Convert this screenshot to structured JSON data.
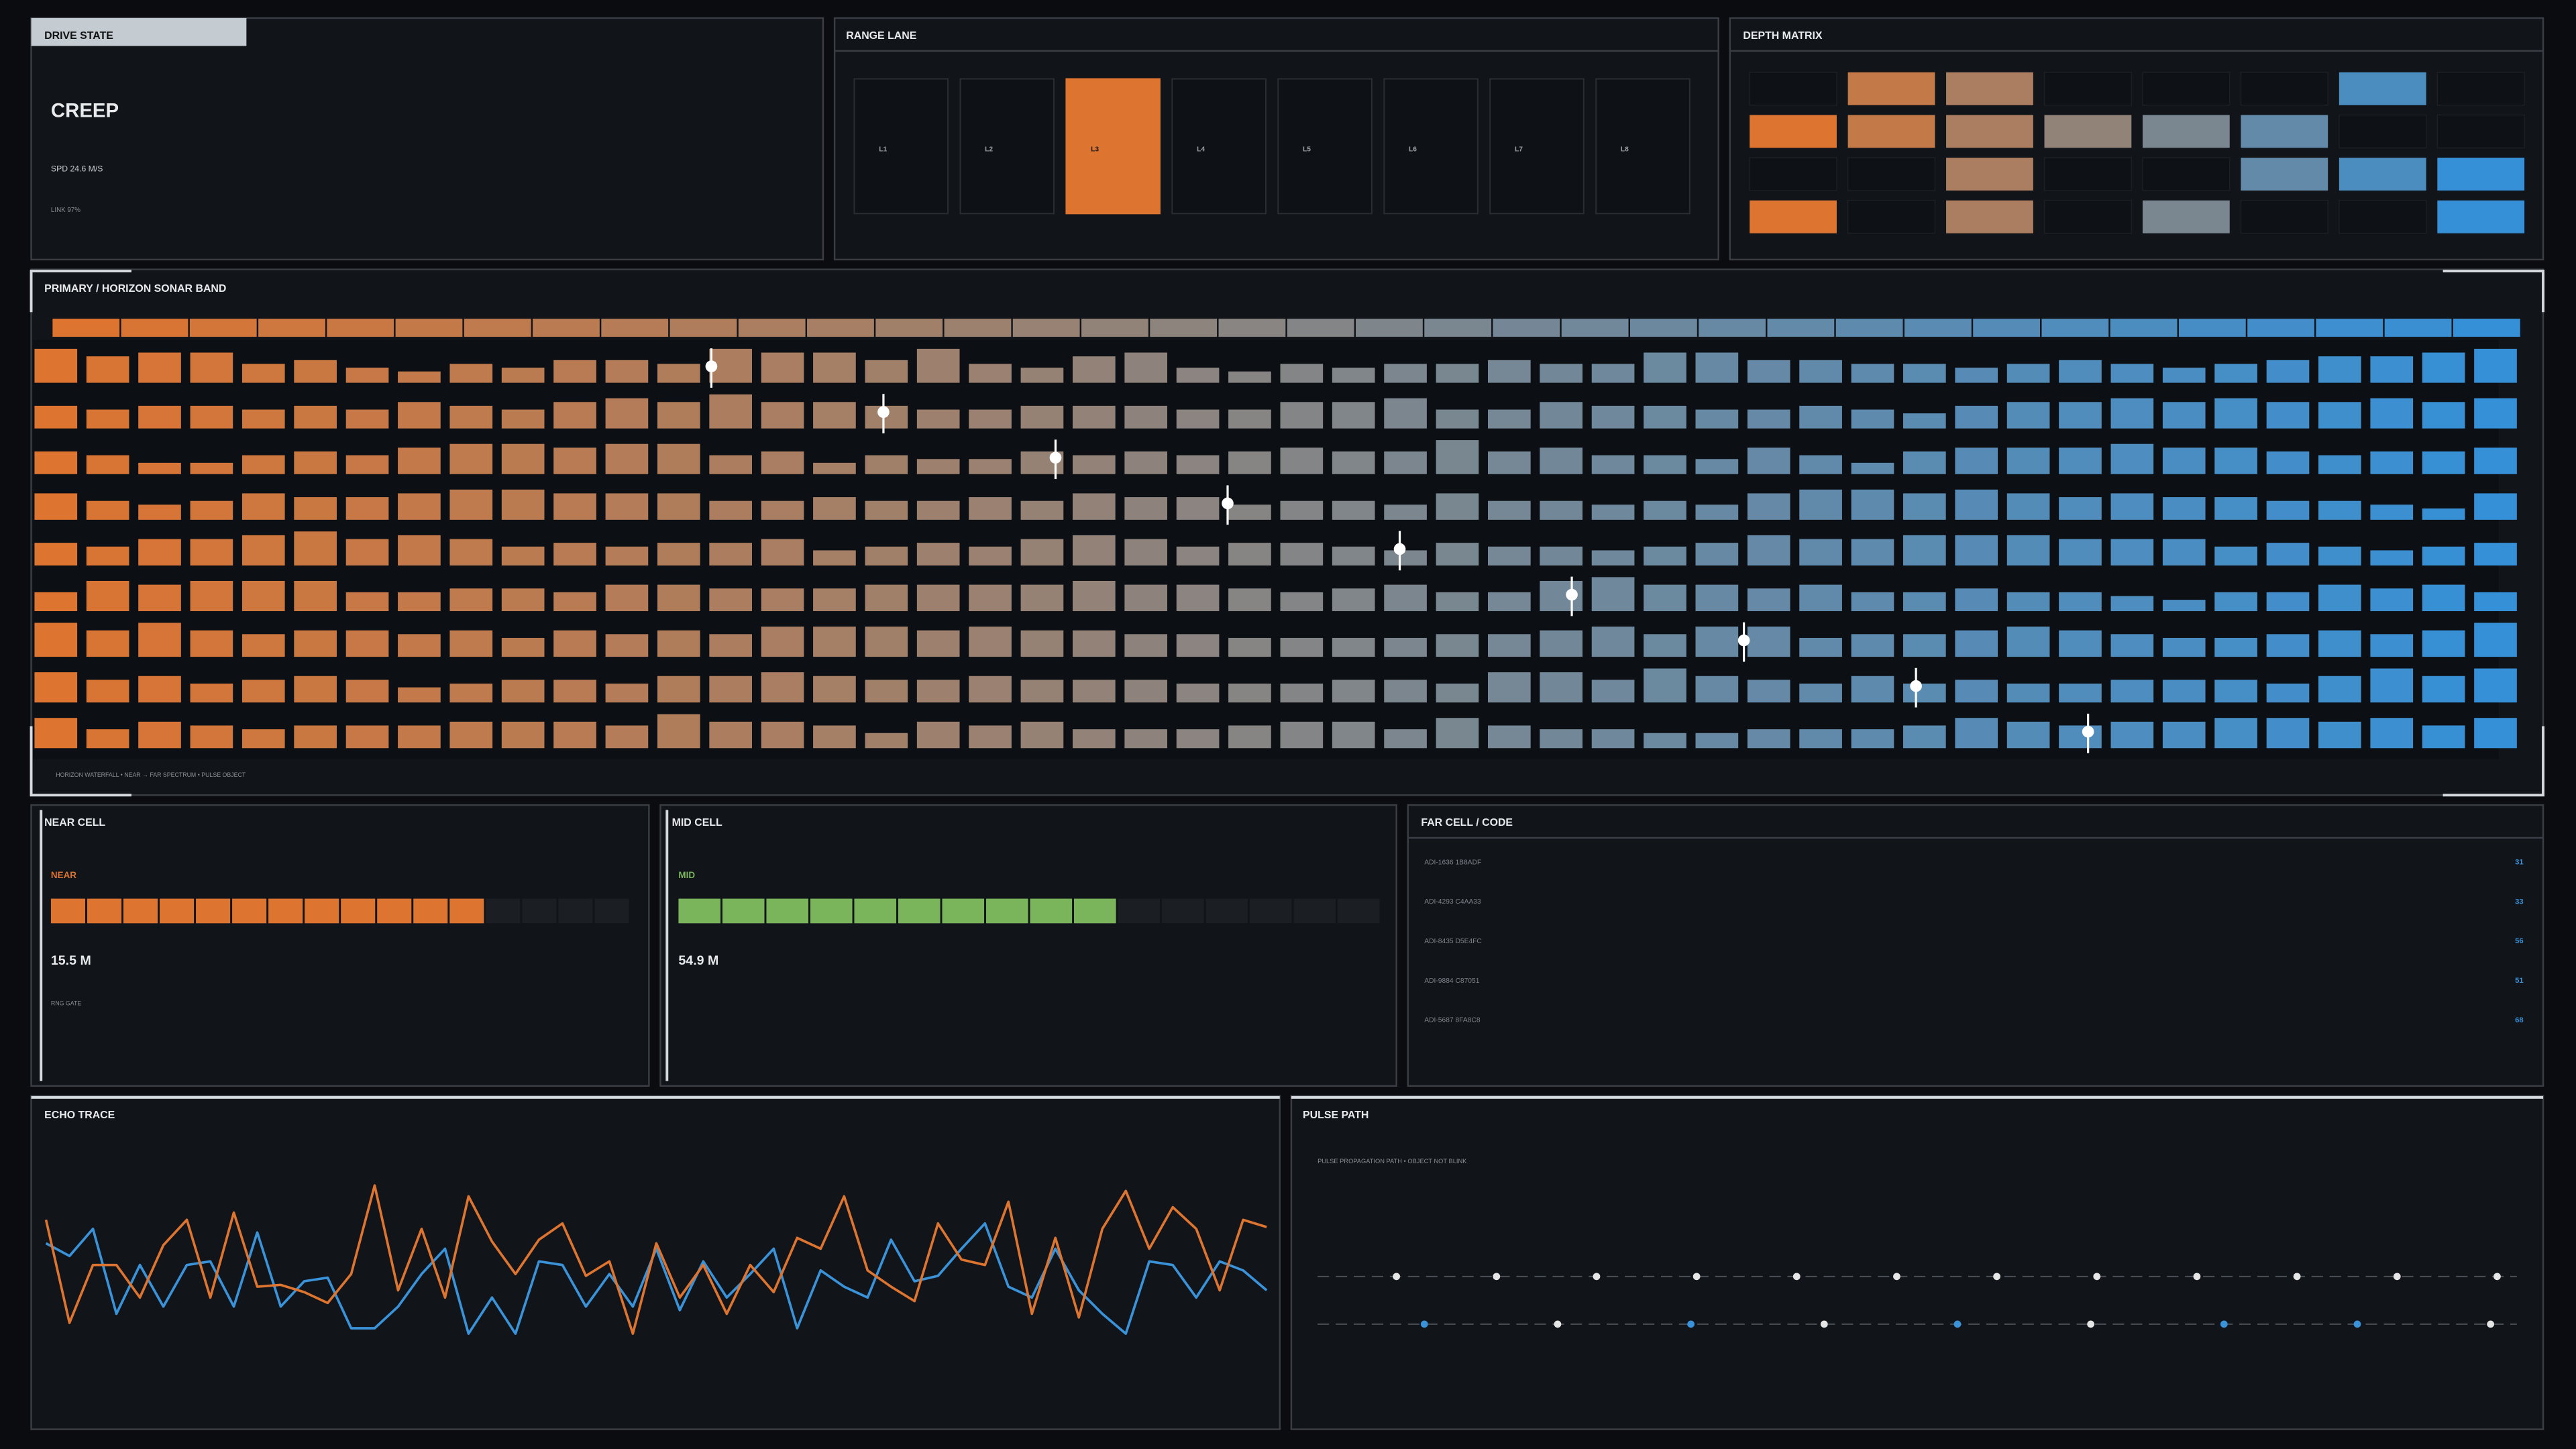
{
  "drive_state": {
    "title": "DRIVE STATE",
    "mode": "CREEP",
    "speed": "SPD 24.6 M/S",
    "link": "LINK 97%"
  },
  "range_lane": {
    "title": "RANGE LANE",
    "lanes": [
      "L1",
      "L2",
      "L3",
      "L4",
      "L5",
      "L6",
      "L7",
      "L8"
    ],
    "active": 2,
    "active_color": "#dd7430"
  },
  "depth_matrix": {
    "title": "DEPTH MATRIX",
    "cells": [
      [
        0,
        1,
        1,
        0,
        0,
        0,
        1,
        0
      ],
      [
        1,
        1,
        1,
        1,
        1,
        1,
        0,
        0
      ],
      [
        0,
        0,
        1,
        0,
        0,
        1,
        1,
        1
      ],
      [
        1,
        0,
        1,
        0,
        1,
        0,
        0,
        1
      ]
    ]
  },
  "sonar": {
    "title": "PRIMARY / HORIZON SONAR BAND",
    "footer": "HORIZON WATERFALL • NEAR → FAR SPECTRUM • PULSE OBJECT",
    "gradient": [
      "#dd7430",
      "#858585",
      "#3590d8"
    ],
    "rows": [
      [
        9,
        7,
        8,
        8,
        5,
        6,
        4,
        3,
        5,
        4,
        6,
        6,
        5,
        9,
        8,
        8,
        6,
        9,
        5,
        4,
        7,
        8,
        4,
        3,
        5,
        4,
        5,
        5,
        6,
        5,
        5,
        8,
        8,
        6,
        6,
        5,
        5,
        4,
        5,
        6,
        5,
        4,
        5,
        6,
        7,
        7,
        8,
        9
      ],
      [
        6,
        5,
        6,
        6,
        5,
        6,
        5,
        7,
        6,
        5,
        7,
        8,
        7,
        9,
        7,
        7,
        6,
        5,
        5,
        6,
        6,
        6,
        5,
        5,
        7,
        7,
        8,
        5,
        5,
        7,
        6,
        6,
        5,
        5,
        6,
        5,
        4,
        6,
        7,
        7,
        8,
        7,
        8,
        7,
        7,
        8,
        7,
        8
      ],
      [
        6,
        5,
        3,
        3,
        5,
        6,
        5,
        7,
        8,
        8,
        7,
        8,
        8,
        5,
        6,
        3,
        5,
        4,
        4,
        6,
        5,
        6,
        5,
        6,
        7,
        6,
        6,
        9,
        6,
        7,
        5,
        5,
        4,
        7,
        5,
        3,
        6,
        7,
        7,
        7,
        8,
        7,
        7,
        6,
        5,
        6,
        6,
        7
      ],
      [
        7,
        5,
        4,
        5,
        7,
        6,
        6,
        7,
        8,
        8,
        7,
        7,
        7,
        5,
        5,
        6,
        5,
        5,
        6,
        5,
        7,
        6,
        6,
        4,
        5,
        5,
        4,
        7,
        5,
        5,
        4,
        5,
        4,
        7,
        8,
        8,
        7,
        8,
        7,
        6,
        7,
        6,
        6,
        5,
        5,
        4,
        3,
        7
      ],
      [
        6,
        5,
        7,
        7,
        8,
        9,
        7,
        8,
        7,
        5,
        6,
        5,
        6,
        6,
        7,
        4,
        5,
        6,
        5,
        7,
        8,
        7,
        5,
        6,
        6,
        5,
        4,
        6,
        5,
        5,
        4,
        5,
        6,
        8,
        7,
        7,
        8,
        8,
        8,
        7,
        7,
        7,
        5,
        6,
        5,
        4,
        5,
        6
      ],
      [
        5,
        8,
        7,
        8,
        8,
        8,
        5,
        5,
        6,
        6,
        5,
        7,
        7,
        6,
        6,
        6,
        7,
        7,
        7,
        7,
        8,
        7,
        7,
        6,
        5,
        6,
        7,
        5,
        5,
        8,
        9,
        7,
        7,
        6,
        7,
        5,
        5,
        6,
        5,
        5,
        4,
        3,
        5,
        5,
        7,
        6,
        7,
        5
      ],
      [
        9,
        7,
        9,
        7,
        6,
        7,
        7,
        6,
        7,
        5,
        7,
        6,
        7,
        6,
        8,
        8,
        8,
        7,
        8,
        7,
        7,
        6,
        6,
        5,
        5,
        5,
        5,
        6,
        6,
        7,
        8,
        6,
        8,
        8,
        5,
        6,
        6,
        7,
        8,
        7,
        6,
        5,
        5,
        6,
        7,
        6,
        7,
        9
      ],
      [
        8,
        6,
        7,
        5,
        6,
        7,
        6,
        4,
        5,
        6,
        6,
        5,
        7,
        7,
        8,
        7,
        6,
        6,
        7,
        6,
        6,
        6,
        5,
        5,
        5,
        6,
        6,
        5,
        8,
        8,
        6,
        9,
        7,
        6,
        5,
        7,
        5,
        6,
        5,
        5,
        6,
        6,
        6,
        5,
        7,
        9,
        7,
        9
      ],
      [
        8,
        5,
        7,
        6,
        5,
        6,
        6,
        6,
        7,
        7,
        7,
        6,
        9,
        7,
        7,
        6,
        4,
        7,
        6,
        7,
        5,
        5,
        5,
        6,
        7,
        7,
        5,
        8,
        6,
        5,
        5,
        4,
        4,
        5,
        5,
        5,
        6,
        8,
        7,
        6,
        7,
        7,
        8,
        8,
        7,
        8,
        6,
        8
      ]
    ]
  },
  "near_cell": {
    "title": "NEAR CELL",
    "label": "NEAR",
    "color": "#dd7430",
    "segments": 16,
    "filled": 12,
    "value": "15.5 M",
    "note": "RNG GATE"
  },
  "mid_cell": {
    "title": "MID CELL",
    "label": "MID",
    "color": "#7ab55c",
    "segments": 16,
    "filled": 10,
    "value": "54.9 M"
  },
  "far_cell": {
    "title": "FAR CELL / CODE",
    "rows": [
      {
        "code": "ADI-1636 1B8ADF",
        "value": 31
      },
      {
        "code": "ADI-4293 C4AA33",
        "value": 33
      },
      {
        "code": "ADI-8435 D5E4FC",
        "value": 56
      },
      {
        "code": "ADI-9884 C87051",
        "value": 51
      },
      {
        "code": "ADI-5687 8FA8C8",
        "value": 68
      }
    ]
  },
  "echo_trace": {
    "title": "ECHO TRACE",
    "ylim": [
      0,
      100
    ],
    "series": [
      {
        "color": "#dd7430",
        "values": [
          75,
          18,
          50,
          50,
          32,
          61,
          75,
          32,
          79,
          38,
          39,
          35,
          29,
          45,
          94,
          36,
          70,
          32,
          88,
          63,
          45,
          64,
          73,
          44,
          52,
          12,
          62,
          32,
          50,
          23,
          50,
          35,
          65,
          59,
          88,
          47,
          38,
          30,
          73,
          53,
          50,
          85,
          23,
          65,
          21,
          70,
          91,
          59,
          82,
          70,
          36,
          75,
          71
        ]
      },
      {
        "color": "#3a92d8",
        "values": [
          62,
          55,
          70,
          23,
          50,
          27,
          50,
          52,
          27,
          68,
          27,
          41,
          43,
          15,
          15,
          27,
          45,
          59,
          12,
          32,
          12,
          52,
          50,
          27,
          45,
          27,
          59,
          25,
          52,
          32,
          45,
          59,
          15,
          47,
          38,
          32,
          64,
          41,
          44,
          59,
          73,
          38,
          32,
          59,
          36,
          23,
          12,
          52,
          50,
          32,
          52,
          47,
          36
        ]
      }
    ]
  },
  "pulse_path": {
    "title": "PULSE PATH",
    "subtitle": "PULSE PROPAGATION PATH • OBJECT NOT BLINK",
    "tracks": [
      [
        "#e6e6e6",
        "#e6e6e6",
        "#e6e6e6",
        "#e6e6e6",
        "#e6e6e6",
        "#e6e6e6",
        "#e6e6e6",
        "#e6e6e6",
        "#e6e6e6",
        "#e6e6e6",
        "#e6e6e6",
        "#e6e6e6"
      ],
      [
        "#3a92d8",
        "#e6e6e6",
        "#3a92d8",
        "#e6e6e6",
        "#3a92d8",
        "#e6e6e6",
        "#3a92d8",
        "#3a92d8",
        "#e6e6e6"
      ]
    ]
  }
}
